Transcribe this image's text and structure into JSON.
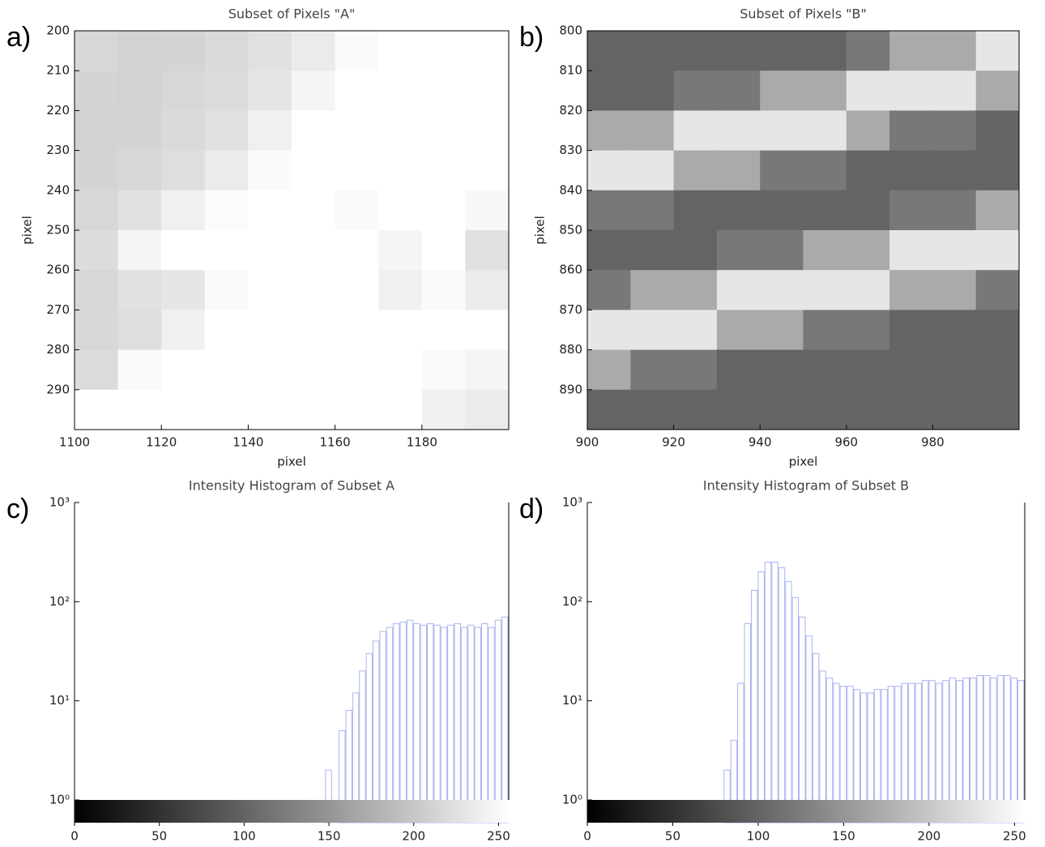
{
  "chart_data": [
    {
      "type": "heatmap",
      "panel": "a)",
      "title": "Subset of Pixels \"A\"",
      "xlabel": "pixel",
      "ylabel": "pixel",
      "xlim": [
        1100,
        1200
      ],
      "ylim": [
        200,
        300
      ],
      "invert_y": true,
      "xticks": [
        1100,
        1120,
        1140,
        1160,
        1180
      ],
      "yticks": [
        200,
        210,
        220,
        230,
        240,
        250,
        260,
        270,
        280,
        290
      ],
      "z": [
        [
          215,
          210,
          212,
          218,
          225,
          235,
          250,
          255,
          255,
          255
        ],
        [
          212,
          210,
          215,
          220,
          230,
          245,
          255,
          255,
          255,
          255
        ],
        [
          210,
          212,
          218,
          225,
          240,
          255,
          255,
          255,
          255,
          255
        ],
        [
          212,
          215,
          222,
          235,
          250,
          255,
          255,
          255,
          255,
          255
        ],
        [
          215,
          225,
          240,
          252,
          255,
          255,
          250,
          255,
          255,
          248
        ],
        [
          220,
          245,
          255,
          255,
          255,
          255,
          255,
          245,
          255,
          225
        ],
        [
          215,
          225,
          230,
          250,
          255,
          255,
          255,
          240,
          250,
          235
        ],
        [
          215,
          222,
          240,
          255,
          255,
          255,
          255,
          255,
          255,
          255
        ],
        [
          220,
          250,
          255,
          255,
          255,
          255,
          255,
          255,
          250,
          245
        ],
        [
          255,
          255,
          255,
          255,
          255,
          255,
          255,
          255,
          240,
          235
        ]
      ]
    },
    {
      "type": "heatmap",
      "panel": "b)",
      "title": "Subset of Pixels \"B\"",
      "xlabel": "pixel",
      "ylabel": "pixel",
      "xlim": [
        900,
        1000
      ],
      "ylim": [
        800,
        900
      ],
      "invert_y": true,
      "xticks": [
        900,
        920,
        940,
        960,
        980
      ],
      "yticks": [
        800,
        810,
        820,
        830,
        840,
        850,
        860,
        870,
        880,
        890
      ],
      "z": [
        [
          100,
          100,
          100,
          100,
          100,
          100,
          120,
          170,
          170,
          230
        ],
        [
          100,
          100,
          120,
          120,
          170,
          170,
          230,
          230,
          230,
          170
        ],
        [
          170,
          170,
          230,
          230,
          230,
          230,
          170,
          120,
          120,
          100
        ],
        [
          230,
          230,
          170,
          170,
          120,
          120,
          100,
          100,
          100,
          100
        ],
        [
          120,
          120,
          100,
          100,
          100,
          100,
          100,
          120,
          120,
          170
        ],
        [
          100,
          100,
          100,
          120,
          120,
          170,
          170,
          230,
          230,
          230
        ],
        [
          120,
          170,
          170,
          230,
          230,
          230,
          230,
          170,
          170,
          120
        ],
        [
          230,
          230,
          230,
          170,
          170,
          120,
          120,
          100,
          100,
          100
        ],
        [
          170,
          120,
          120,
          100,
          100,
          100,
          100,
          100,
          100,
          100
        ],
        [
          100,
          100,
          100,
          100,
          100,
          100,
          100,
          100,
          100,
          100
        ]
      ]
    },
    {
      "type": "histogram",
      "panel": "c)",
      "title": "Intensity Histogram of Subset A",
      "color": "#aab4f0",
      "log_y": true,
      "xlim": [
        0,
        256
      ],
      "ylim": [
        0.59,
        1000
      ],
      "xticks": [
        0,
        50,
        100,
        150,
        200,
        250
      ],
      "yticks": [
        {
          "value": 1,
          "label": "10⁰"
        },
        {
          "value": 10,
          "label": "10¹"
        },
        {
          "value": 100,
          "label": "10²"
        },
        {
          "value": 1000,
          "label": "10³"
        }
      ],
      "bins": [
        0,
        4,
        8,
        12,
        16,
        20,
        24,
        28,
        32,
        36,
        40,
        44,
        48,
        52,
        56,
        60,
        64,
        68,
        72,
        76,
        80,
        84,
        88,
        92,
        96,
        100,
        104,
        108,
        112,
        116,
        120,
        124,
        128,
        132,
        136,
        140,
        144,
        148,
        152,
        156,
        160,
        164,
        168,
        172,
        176,
        180,
        184,
        188,
        192,
        196,
        200,
        204,
        208,
        212,
        216,
        220,
        224,
        228,
        232,
        236,
        240,
        244,
        248,
        252,
        256
      ],
      "counts": [
        0,
        0,
        0,
        0,
        0,
        0,
        0,
        0,
        0,
        0,
        0,
        0,
        0,
        0,
        0,
        0,
        0,
        0,
        0,
        0,
        0,
        0,
        0,
        0,
        0,
        0,
        0,
        0,
        0,
        0,
        0,
        0,
        0,
        0,
        0,
        0,
        0,
        2,
        0,
        5,
        8,
        12,
        20,
        30,
        40,
        50,
        55,
        60,
        62,
        65,
        60,
        58,
        60,
        58,
        55,
        58,
        60,
        55,
        58,
        55,
        60,
        55,
        65,
        70
      ]
    },
    {
      "type": "histogram",
      "panel": "d)",
      "title": "Intensity Histogram of Subset B",
      "color": "#aab4f0",
      "log_y": true,
      "xlim": [
        0,
        256
      ],
      "ylim": [
        0.59,
        1000
      ],
      "xticks": [
        0,
        50,
        100,
        150,
        200,
        250
      ],
      "yticks": [
        {
          "value": 1,
          "label": "10⁰"
        },
        {
          "value": 10,
          "label": "10¹"
        },
        {
          "value": 100,
          "label": "10²"
        },
        {
          "value": 1000,
          "label": "10³"
        }
      ],
      "bins": [
        0,
        4,
        8,
        12,
        16,
        20,
        24,
        28,
        32,
        36,
        40,
        44,
        48,
        52,
        56,
        60,
        64,
        68,
        72,
        76,
        80,
        84,
        88,
        92,
        96,
        100,
        104,
        108,
        112,
        116,
        120,
        124,
        128,
        132,
        136,
        140,
        144,
        148,
        152,
        156,
        160,
        164,
        168,
        172,
        176,
        180,
        184,
        188,
        192,
        196,
        200,
        204,
        208,
        212,
        216,
        220,
        224,
        228,
        232,
        236,
        240,
        244,
        248,
        252,
        256
      ],
      "counts": [
        0,
        0,
        0,
        0,
        0,
        0,
        0,
        0,
        0,
        0,
        0,
        0,
        0,
        0,
        0,
        0,
        0,
        0,
        0,
        0,
        2,
        4,
        15,
        60,
        130,
        200,
        250,
        250,
        220,
        160,
        110,
        70,
        45,
        30,
        20,
        17,
        15,
        14,
        14,
        13,
        12,
        12,
        13,
        13,
        14,
        14,
        15,
        15,
        15,
        16,
        16,
        15,
        16,
        17,
        16,
        17,
        17,
        18,
        18,
        17,
        18,
        18,
        17,
        16
      ]
    }
  ]
}
